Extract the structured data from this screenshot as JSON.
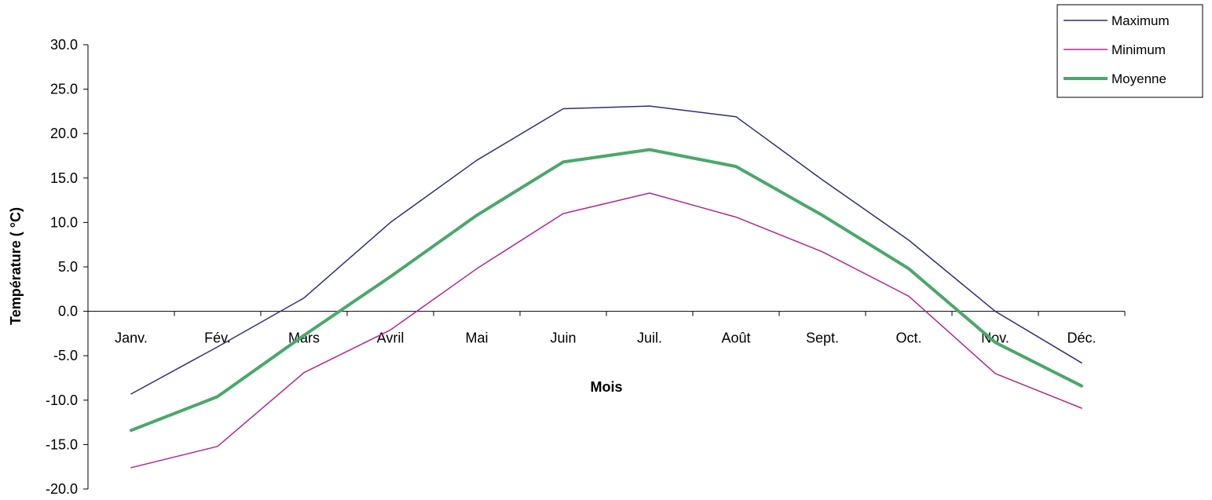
{
  "chart_data": {
    "type": "line",
    "xlabel": "Mois",
    "ylabel": "Température (  °C)",
    "categories": [
      "Janv.",
      "Fév.",
      "Mars",
      "Avril",
      "Mai",
      "Juin",
      "Juil.",
      "Août",
      "Sept.",
      "Oct.",
      "Nov.",
      "Déc."
    ],
    "ylim": [
      -20,
      30
    ],
    "yticks": [
      "30.0",
      "25.0",
      "20.0",
      "15.0",
      "10.0",
      "5.0",
      "0.0",
      "-5.0",
      "-10.0",
      "-15.0",
      "-20.0"
    ],
    "grid": false,
    "legend_position": "top-right",
    "series": [
      {
        "name": "Maximum",
        "color": "#2b2e7f",
        "width": 1.5,
        "values": [
          -9.3,
          -4.0,
          1.5,
          10.0,
          17.0,
          22.8,
          23.1,
          21.9,
          14.8,
          8.0,
          0.0,
          -5.8
        ]
      },
      {
        "name": "Minimum",
        "color": "#b5258f",
        "width": 1.5,
        "values": [
          -17.6,
          -15.2,
          -6.9,
          -2.1,
          4.8,
          11.0,
          13.3,
          10.6,
          6.7,
          1.7,
          -7.0,
          -10.9
        ]
      },
      {
        "name": "Moyenne",
        "color": "#4aa86a",
        "width": 4,
        "values": [
          -13.4,
          -9.6,
          -2.7,
          3.9,
          10.8,
          16.8,
          18.2,
          16.3,
          10.8,
          4.8,
          -3.5,
          -8.4
        ]
      }
    ]
  }
}
